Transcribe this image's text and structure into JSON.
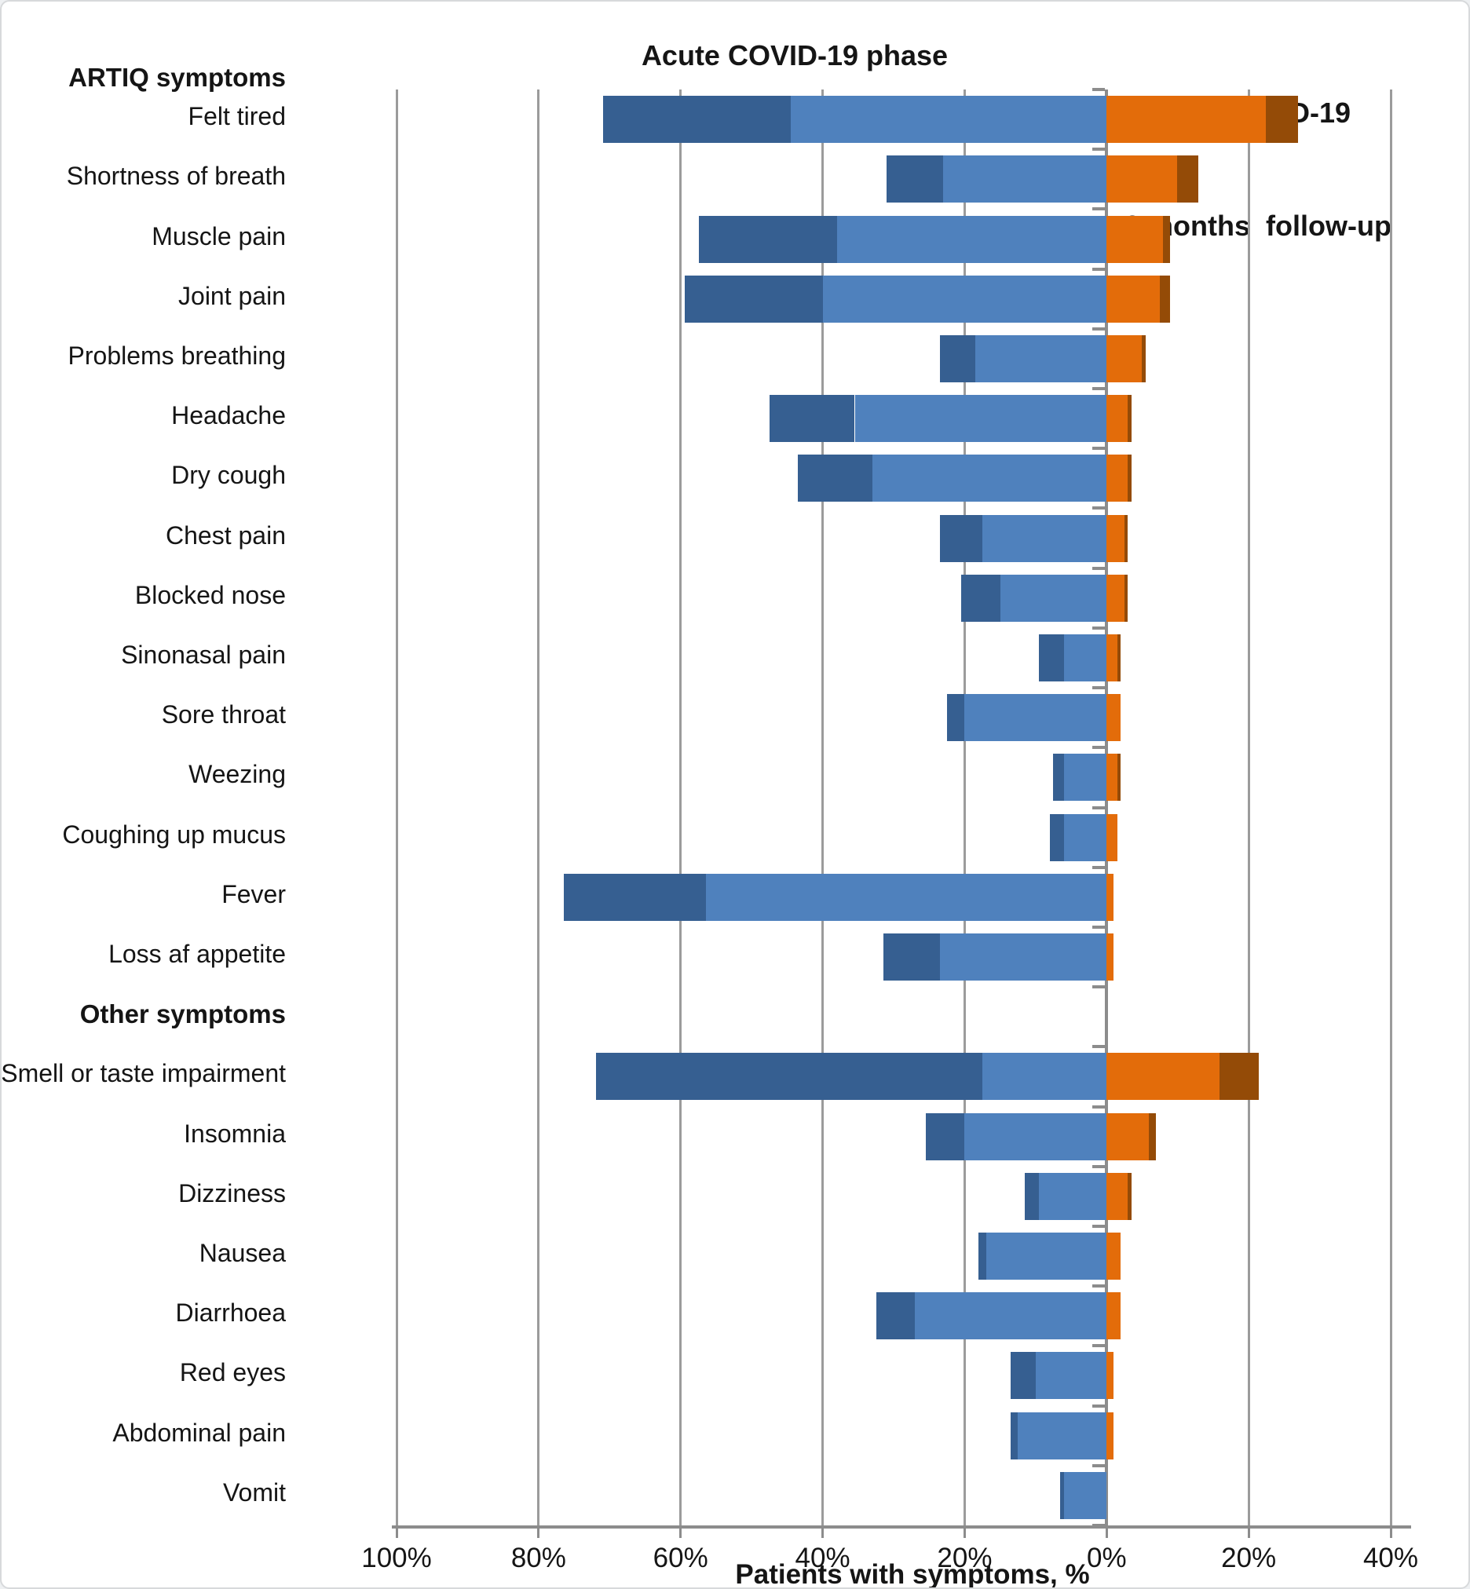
{
  "figure": {
    "left_header": "ARTIQ symptoms",
    "acute_title": "Acute COVID-19 phase",
    "post_title_line1": "Post-COVID-19",
    "post_title_line2": "12 months  follow-up",
    "xlabel": "Patients with symptoms, %"
  },
  "chart_data": {
    "type": "bar",
    "variant": "diverging horizontal stacked bars; left side = acute phase (two blue severity shades, darker shade outermost), right side = 12-month follow-up (orange, darker orange/brown outermost)",
    "units": "percent of patients",
    "title_left_section": "Acute COVID-19 phase",
    "title_right_section": "Post-COVID-19 12 months follow-up",
    "xlabel": "Patients with symptoms, %",
    "axis": {
      "xticks": [
        "100%",
        "80%",
        "60%",
        "40%",
        "20%",
        "0%",
        "20%",
        "40%"
      ],
      "left_max_pct": 100,
      "right_max_pct": 40,
      "gridlines": true,
      "zero_axis": "vertical category axis at 0% with small tick marks between categories"
    },
    "colors": {
      "acute_outer_dark_blue": "#365F91",
      "acute_inner_light_blue": "#4F81BD",
      "post_inner_orange": "#E36C0A",
      "post_outer_brown": "#944B07",
      "gridline": "#9b9b9b",
      "axis": "#8c8c8c",
      "text": "#151515"
    },
    "group_headers": [
      "ARTIQ symptoms",
      "Other symptoms"
    ],
    "rows": [
      {
        "label": "Felt tired",
        "header": false,
        "acute_dark": 26.5,
        "acute_light": 44.5,
        "post_orange": 22.5,
        "post_brown": 4.5
      },
      {
        "label": "Shortness of breath",
        "header": false,
        "acute_dark": 8,
        "acute_light": 23,
        "post_orange": 10,
        "post_brown": 3
      },
      {
        "label": "Muscle pain",
        "header": false,
        "acute_dark": 19.5,
        "acute_light": 38,
        "post_orange": 8,
        "post_brown": 1
      },
      {
        "label": "Joint pain",
        "header": false,
        "acute_dark": 19.5,
        "acute_light": 40,
        "post_orange": 7.5,
        "post_brown": 1.5
      },
      {
        "label": "Problems breathing",
        "header": false,
        "acute_dark": 5,
        "acute_light": 18.5,
        "post_orange": 5,
        "post_brown": 0.5
      },
      {
        "label": "Headache",
        "header": false,
        "acute_dark": 12,
        "acute_light": 35.5,
        "post_orange": 3,
        "post_brown": 0.5
      },
      {
        "label": "Dry cough",
        "header": false,
        "acute_dark": 10.5,
        "acute_light": 33,
        "post_orange": 3,
        "post_brown": 0.5
      },
      {
        "label": "Chest pain",
        "header": false,
        "acute_dark": 6,
        "acute_light": 17.5,
        "post_orange": 2.5,
        "post_brown": 0.5
      },
      {
        "label": "Blocked nose",
        "header": false,
        "acute_dark": 5.5,
        "acute_light": 15,
        "post_orange": 2.5,
        "post_brown": 0.5
      },
      {
        "label": "Sinonasal pain",
        "header": false,
        "acute_dark": 3.5,
        "acute_light": 6,
        "post_orange": 1.5,
        "post_brown": 0.5
      },
      {
        "label": "Sore throat",
        "header": false,
        "acute_dark": 2.5,
        "acute_light": 20,
        "post_orange": 2,
        "post_brown": 0
      },
      {
        "label": "Weezing",
        "header": false,
        "acute_dark": 1.5,
        "acute_light": 6,
        "post_orange": 1.5,
        "post_brown": 0.5
      },
      {
        "label": "Coughing up mucus",
        "header": false,
        "acute_dark": 2,
        "acute_light": 6,
        "post_orange": 1.5,
        "post_brown": 0
      },
      {
        "label": "Fever",
        "header": false,
        "acute_dark": 20,
        "acute_light": 56.5,
        "post_orange": 1,
        "post_brown": 0
      },
      {
        "label": "Loss af appetite",
        "header": false,
        "acute_dark": 8,
        "acute_light": 23.5,
        "post_orange": 1,
        "post_brown": 0
      },
      {
        "label": "Other symptoms",
        "header": true,
        "acute_dark": 0,
        "acute_light": 0,
        "post_orange": 0,
        "post_brown": 0
      },
      {
        "label": "Smell or taste impairment",
        "header": false,
        "acute_dark": 54.5,
        "acute_light": 17.5,
        "post_orange": 16,
        "post_brown": 5.5
      },
      {
        "label": "Insomnia",
        "header": false,
        "acute_dark": 5.5,
        "acute_light": 20,
        "post_orange": 6,
        "post_brown": 1
      },
      {
        "label": "Dizziness",
        "header": false,
        "acute_dark": 2,
        "acute_light": 9.5,
        "post_orange": 3,
        "post_brown": 0.5
      },
      {
        "label": "Nausea",
        "header": false,
        "acute_dark": 1,
        "acute_light": 17,
        "post_orange": 2,
        "post_brown": 0
      },
      {
        "label": "Diarrhoea",
        "header": false,
        "acute_dark": 5.5,
        "acute_light": 27,
        "post_orange": 2,
        "post_brown": 0
      },
      {
        "label": "Red eyes",
        "header": false,
        "acute_dark": 3.5,
        "acute_light": 10,
        "post_orange": 1,
        "post_brown": 0
      },
      {
        "label": "Abdominal pain",
        "header": false,
        "acute_dark": 1,
        "acute_light": 12.5,
        "post_orange": 1,
        "post_brown": 0
      },
      {
        "label": "Vomit",
        "header": false,
        "acute_dark": 0.5,
        "acute_light": 6,
        "post_orange": 0,
        "post_brown": 0
      }
    ]
  }
}
